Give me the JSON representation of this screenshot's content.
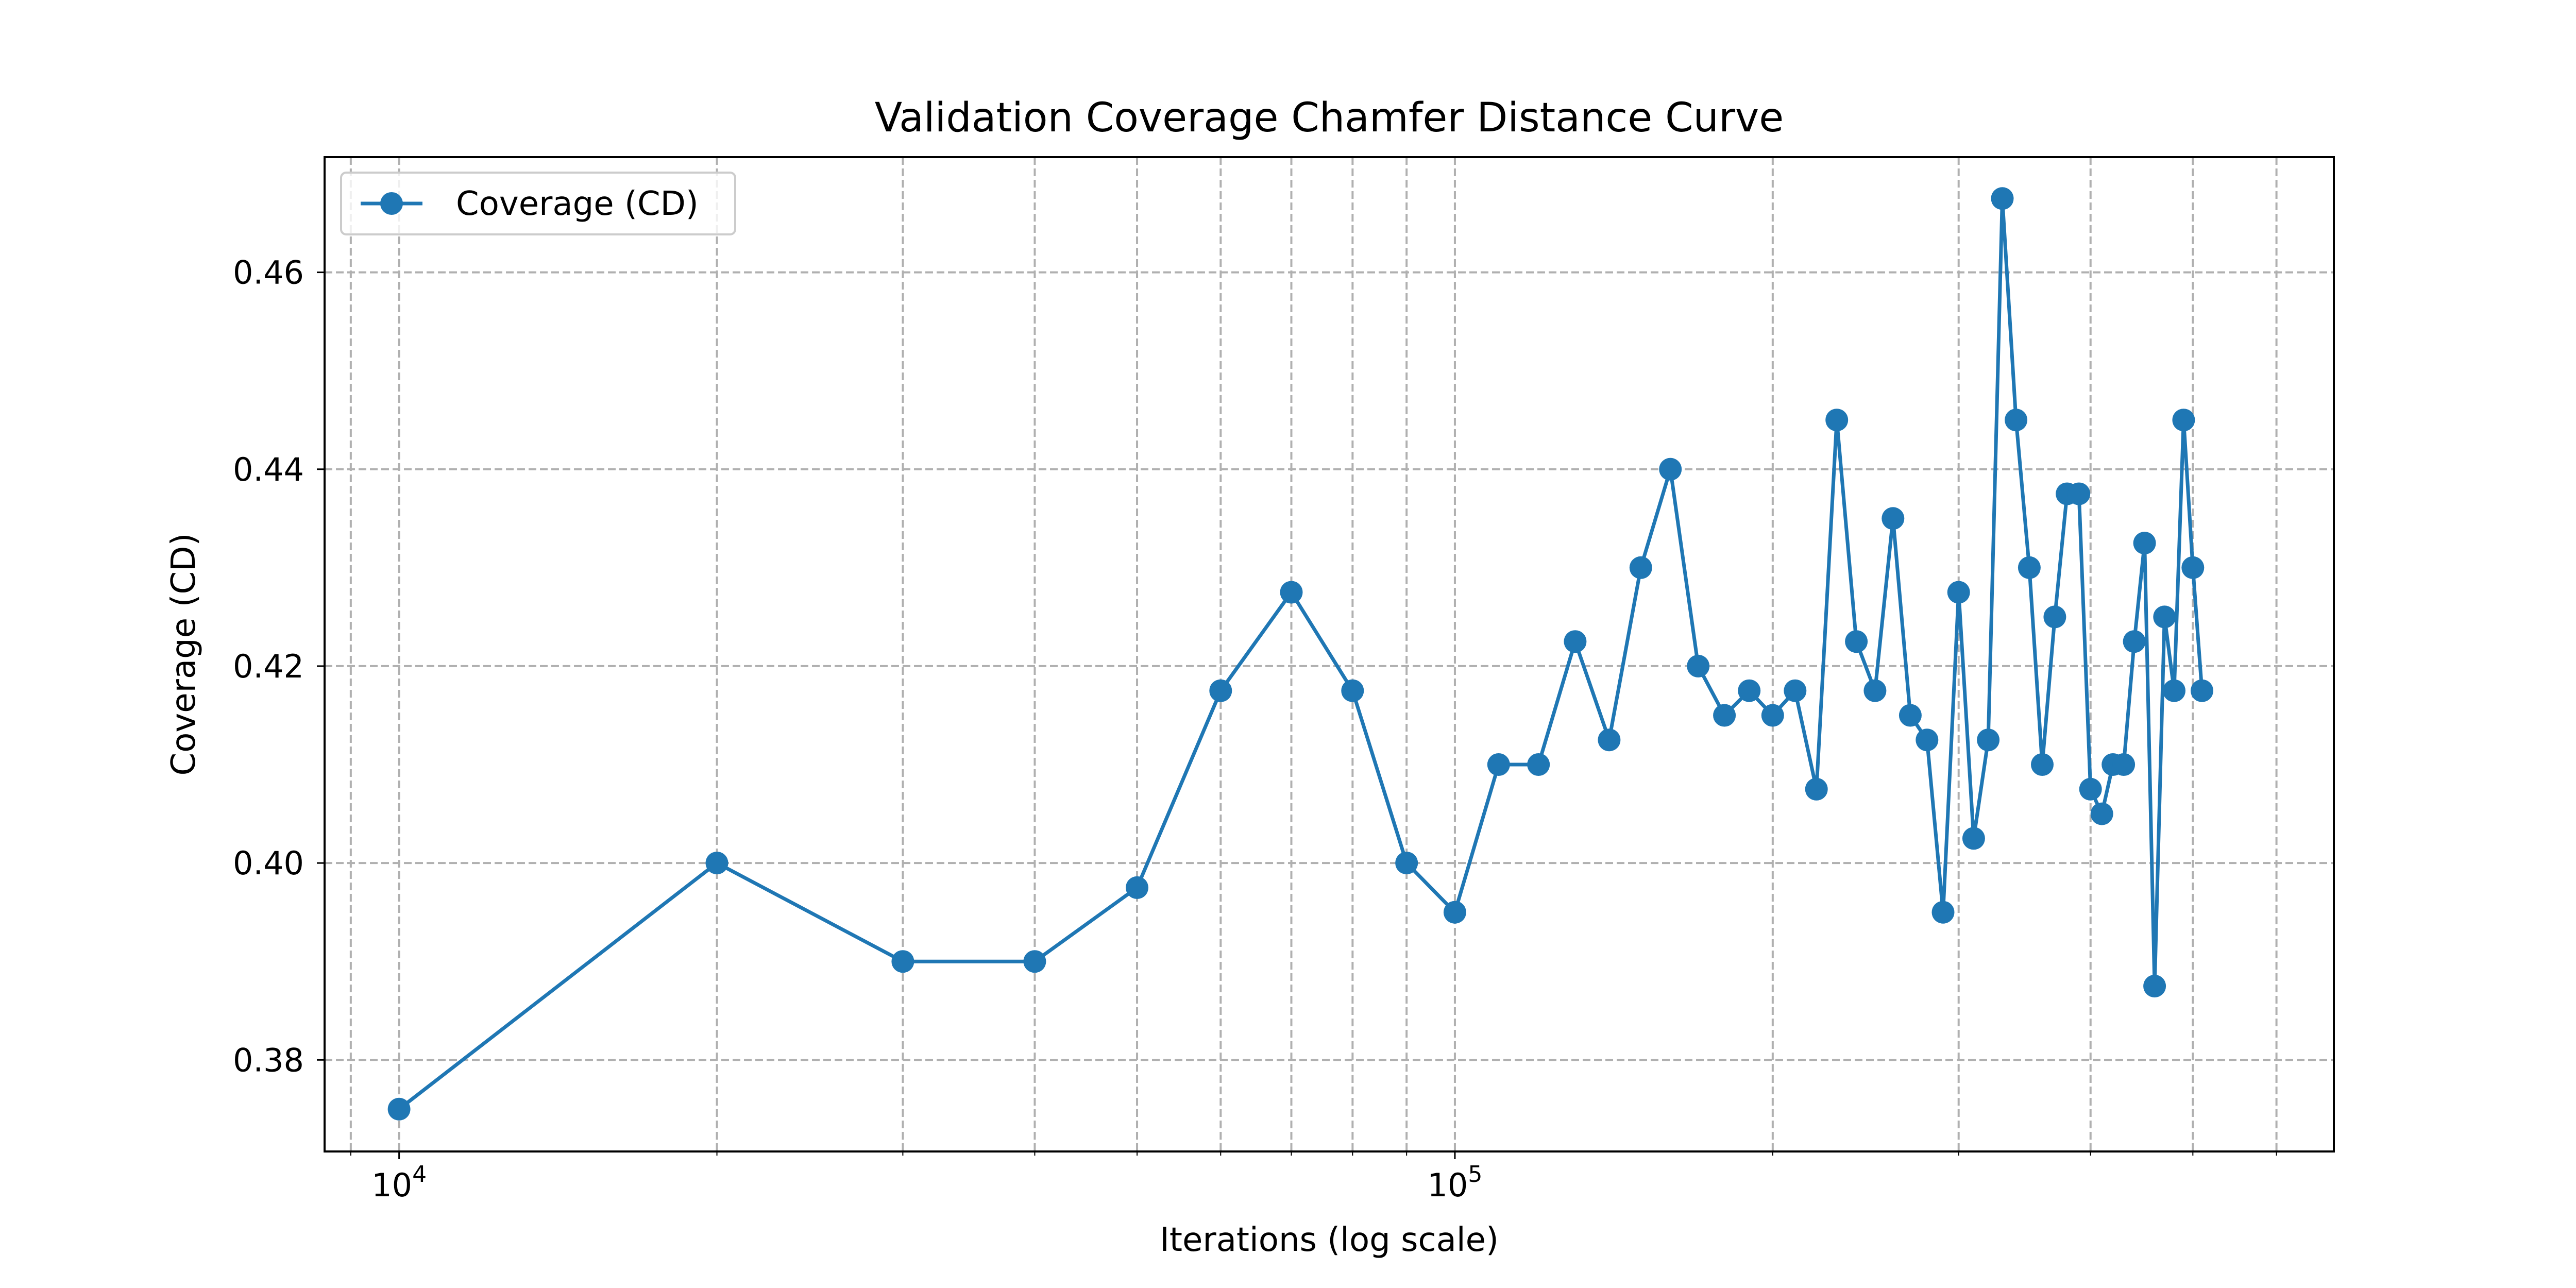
{
  "chart_data": {
    "type": "line",
    "title": "Validation Coverage Chamfer Distance Curve",
    "xlabel": "Iterations (log scale)",
    "ylabel": "Coverage (CD)",
    "xscale": "log",
    "xlim": [
      8500,
      680000
    ],
    "ylim": [
      0.3707,
      0.4717
    ],
    "grid": true,
    "grid_style": "dashed",
    "legend_position": "upper-left",
    "x_tick_labels": [
      {
        "value": 10000,
        "base": "10",
        "exp": "4"
      },
      {
        "value": 100000,
        "base": "10",
        "exp": "5"
      }
    ],
    "y_ticks": [
      {
        "value": 0.38,
        "label": "0.38"
      },
      {
        "value": 0.4,
        "label": "0.40"
      },
      {
        "value": 0.42,
        "label": "0.42"
      },
      {
        "value": 0.44,
        "label": "0.44"
      },
      {
        "value": 0.46,
        "label": "0.46"
      }
    ],
    "series": [
      {
        "name": "Coverage (CD)",
        "color": "#1f77b4",
        "marker": "circle",
        "x": [
          10000,
          20000,
          30000,
          40000,
          50000,
          60000,
          70000,
          80000,
          90000,
          100000,
          110000,
          120000,
          130000,
          140000,
          150000,
          160000,
          170000,
          180000,
          190000,
          200000,
          210000,
          220000,
          230000,
          240000,
          250000,
          260000,
          270000,
          280000,
          290000,
          300000,
          310000,
          320000,
          330000,
          340000,
          350000,
          360000,
          370000,
          380000,
          390000,
          400000,
          410000,
          420000,
          430000,
          440000,
          450000,
          460000,
          470000,
          480000,
          490000,
          500000,
          510000
        ],
        "values": [
          0.375,
          0.4,
          0.39,
          0.39,
          0.3975,
          0.4175,
          0.4275,
          0.4175,
          0.4,
          0.395,
          0.41,
          0.41,
          0.4225,
          0.4125,
          0.43,
          0.44,
          0.42,
          0.415,
          0.4175,
          0.415,
          0.4175,
          0.4075,
          0.445,
          0.4225,
          0.4175,
          0.435,
          0.415,
          0.4125,
          0.395,
          0.4275,
          0.4025,
          0.4125,
          0.4675,
          0.445,
          0.43,
          0.41,
          0.425,
          0.4375,
          0.4375,
          0.4075,
          0.405,
          0.41,
          0.41,
          0.4225,
          0.4325,
          0.3875,
          0.425,
          0.4175,
          0.445,
          0.43,
          0.4175
        ]
      }
    ]
  }
}
